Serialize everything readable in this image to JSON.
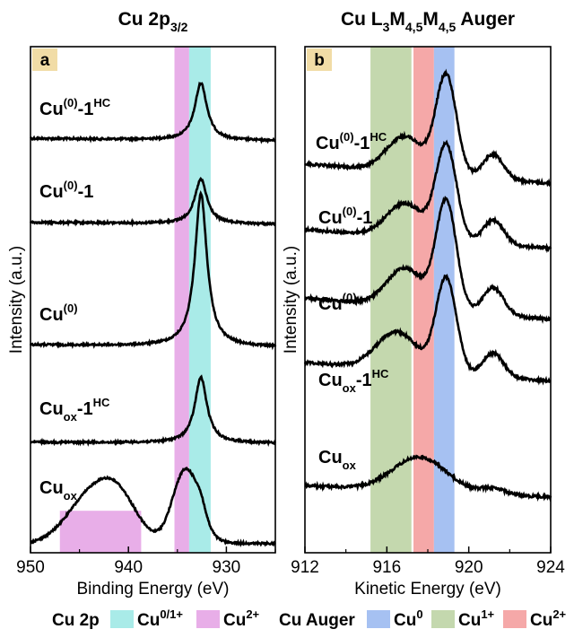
{
  "colors": {
    "cu01_teal": "#a9ebe8",
    "cu2_magenta": "#e8aee8",
    "cu0_blue": "#a6c1f2",
    "cu1_green": "#c4d8ae",
    "cu2_red": "#f5a8a8",
    "letter_box": "#f1dca6",
    "trace": "#000000"
  },
  "legend": {
    "cu2p": {
      "title": "Cu 2p",
      "items": [
        {
          "base": "Cu",
          "sup": "0/1+",
          "color": "#a9ebe8"
        },
        {
          "base": "Cu",
          "sup": "2+",
          "color": "#e8aee8"
        }
      ]
    },
    "auger": {
      "title": "Cu Auger",
      "items": [
        {
          "base": "Cu",
          "sup": "0",
          "color": "#a6c1f2"
        },
        {
          "base": "Cu",
          "sup": "1+",
          "color": "#c4d8ae"
        },
        {
          "base": "Cu",
          "sup": "2+",
          "color": "#f5a8a8"
        }
      ]
    }
  },
  "chart_data": [
    {
      "type": "line",
      "panel": "a",
      "title": {
        "base": "Cu 2p",
        "sub": "3/2"
      },
      "xlabel": "Binding Energy (eV)",
      "ylabel": "Intensity (a.u.)",
      "xlim": [
        950,
        925
      ],
      "x_reversed": true,
      "xticks": [
        950,
        940,
        930
      ],
      "bands": [
        {
          "from": 935.3,
          "to": 933.8,
          "color": "#e8aee8"
        },
        {
          "from": 933.8,
          "to": 931.6,
          "color": "#a9ebe8"
        },
        {
          "from": 947.0,
          "to": 938.7,
          "color": "#e8aee8",
          "level": 0.26
        }
      ],
      "series": [
        {
          "label": {
            "base": "Cu",
            "sup1": "(0)",
            "mid": "-1",
            "sup2": "HC"
          },
          "baseline": 0.28,
          "peaks": [
            {
              "x": 932.6,
              "h": 0.67,
              "w": 0.75
            }
          ]
        },
        {
          "label": {
            "base": "Cu",
            "sup1": "(0)",
            "mid": "-1"
          },
          "baseline": 0.24,
          "peaks": [
            {
              "x": 932.6,
              "h": 0.55,
              "w": 0.75
            }
          ]
        },
        {
          "label": {
            "base": "Cu",
            "sup1": "(0)"
          },
          "baseline": 0.16,
          "peaks": [
            {
              "x": 932.6,
              "h": 1.0,
              "w": 0.75
            }
          ]
        },
        {
          "label": {
            "base": "Cu",
            "sub": "ox",
            "mid": "-1",
            "sup2": "HC"
          },
          "baseline": 0.12,
          "peaks": [
            {
              "x": 932.6,
              "h": 0.73,
              "w": 0.75
            }
          ]
        },
        {
          "label": {
            "base": "Cu",
            "sub": "ox"
          },
          "baseline": 0.0,
          "peaks": [
            {
              "x": 934.2,
              "h": 0.72,
              "w": 1.3
            },
            {
              "x": 932.6,
              "h": 0.18,
              "w": 0.8
            },
            {
              "x": 944.0,
              "h": 0.44,
              "w": 2.4
            },
            {
              "x": 941.0,
              "h": 0.4,
              "w": 2.0
            }
          ]
        }
      ]
    },
    {
      "type": "line",
      "panel": "b",
      "title": {
        "base": "Cu L",
        "sub1": "3",
        "mid1": "M",
        "sub2": "4,5",
        "mid2": "M",
        "sub3": "4,5",
        "tail": " Auger"
      },
      "xlabel": "Kinetic Energy (eV)",
      "ylabel": "Intensity (a.u.)",
      "xlim": [
        912,
        924
      ],
      "x_reversed": false,
      "xticks": [
        912,
        916,
        920,
        924
      ],
      "bands": [
        {
          "from": 915.2,
          "to": 917.2,
          "color": "#c4d8ae"
        },
        {
          "from": 917.3,
          "to": 918.3,
          "color": "#f5a8a8"
        },
        {
          "from": 918.3,
          "to": 919.3,
          "color": "#a6c1f2"
        }
      ],
      "series": [
        {
          "label": {
            "base": "Cu",
            "sup1": "(0)",
            "mid": "-1",
            "sup2": "HC"
          },
          "peaks": [
            {
              "x": 918.9,
              "h": 1.0,
              "w": 0.5
            },
            {
              "x": 916.9,
              "h": 0.36,
              "w": 0.9
            },
            {
              "x": 921.2,
              "h": 0.25,
              "w": 0.5
            }
          ]
        },
        {
          "label": {
            "base": "Cu",
            "sup1": "(0)",
            "mid": "-1"
          },
          "peaks": [
            {
              "x": 918.9,
              "h": 1.0,
              "w": 0.5
            },
            {
              "x": 916.9,
              "h": 0.36,
              "w": 0.9
            },
            {
              "x": 921.2,
              "h": 0.25,
              "w": 0.5
            }
          ]
        },
        {
          "label": {
            "base": "Cu",
            "sup1": "(0)"
          },
          "peaks": [
            {
              "x": 918.9,
              "h": 1.0,
              "w": 0.5
            },
            {
              "x": 916.9,
              "h": 0.36,
              "w": 0.9
            },
            {
              "x": 921.2,
              "h": 0.25,
              "w": 0.5
            }
          ]
        },
        {
          "label": {
            "base": "Cu",
            "sub": "ox",
            "mid": "-1",
            "sup2": "HC"
          },
          "peaks": [
            {
              "x": 918.9,
              "h": 1.0,
              "w": 0.5
            },
            {
              "x": 916.5,
              "h": 0.4,
              "w": 1.0
            },
            {
              "x": 921.2,
              "h": 0.25,
              "w": 0.5
            }
          ]
        },
        {
          "label": {
            "base": "Cu",
            "sub": "ox"
          },
          "peaks": [
            {
              "x": 917.6,
              "h": 0.6,
              "w": 1.3
            },
            {
              "x": 921.2,
              "h": 0.1,
              "w": 0.6
            }
          ]
        }
      ]
    }
  ]
}
